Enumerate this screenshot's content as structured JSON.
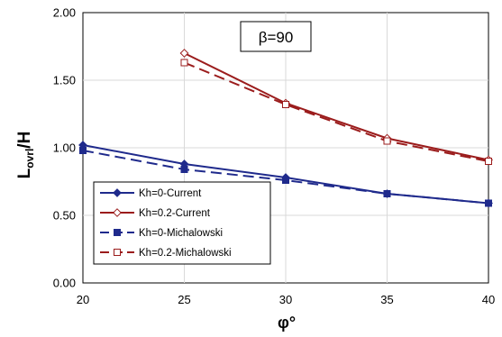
{
  "chart_data": {
    "type": "line",
    "xlabel": "φ°",
    "ylabel_main": "L",
    "ylabel_sub": "ovrl",
    "ylabel_rest": "/H",
    "annotation": "β=90",
    "xlim": [
      20,
      40
    ],
    "ylim": [
      0,
      2
    ],
    "x_ticks": [
      "20",
      "25",
      "30",
      "35",
      "40"
    ],
    "y_ticks": [
      "0.00",
      "0.50",
      "1.00",
      "1.50",
      "2.00"
    ],
    "grid": true,
    "legend_position": "bottom-left",
    "series": [
      {
        "name": "Kh=0-Current",
        "color": "#1f2a8c",
        "dash": "solid",
        "marker": "diamond-filled",
        "points": [
          [
            20,
            1.02
          ],
          [
            25,
            0.88
          ],
          [
            30,
            0.78
          ],
          [
            35,
            0.66
          ],
          [
            40,
            0.59
          ]
        ]
      },
      {
        "name": "Kh=0.2-Current",
        "color": "#9b1c1c",
        "dash": "solid",
        "marker": "diamond-open",
        "points": [
          [
            25,
            1.7
          ],
          [
            30,
            1.33
          ],
          [
            35,
            1.07
          ],
          [
            40,
            0.91
          ]
        ]
      },
      {
        "name": "Kh=0-Michalowski",
        "color": "#1f2a8c",
        "dash": "dashed",
        "marker": "square-filled",
        "points": [
          [
            20,
            0.98
          ],
          [
            25,
            0.84
          ],
          [
            30,
            0.76
          ],
          [
            35,
            0.66
          ],
          [
            40,
            0.59
          ]
        ]
      },
      {
        "name": "Kh=0.2-Michalowski",
        "color": "#9b1c1c",
        "dash": "dashed",
        "marker": "square-open",
        "points": [
          [
            25,
            1.63
          ],
          [
            30,
            1.32
          ],
          [
            35,
            1.05
          ],
          [
            40,
            0.9
          ]
        ]
      }
    ]
  }
}
